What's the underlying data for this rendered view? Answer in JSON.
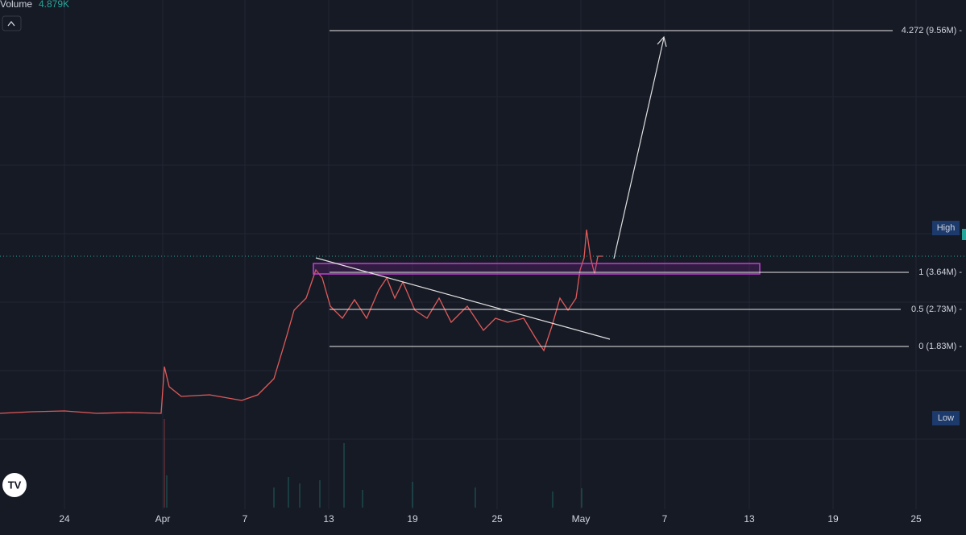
{
  "indicator": {
    "name": "Volume",
    "value": "4.879K"
  },
  "x_axis": {
    "labels": [
      "24",
      "Apr",
      "7",
      "13",
      "19",
      "25",
      "May",
      "7",
      "13",
      "19",
      "25"
    ]
  },
  "levels": [
    {
      "label": "4.272 (9.56M) -"
    },
    {
      "label": "1 (3.64M) -"
    },
    {
      "label": "0.5 (2.73M) -"
    },
    {
      "label": "0 (1.83M) -"
    }
  ],
  "badges": {
    "high": "High",
    "low": "Low"
  }
}
